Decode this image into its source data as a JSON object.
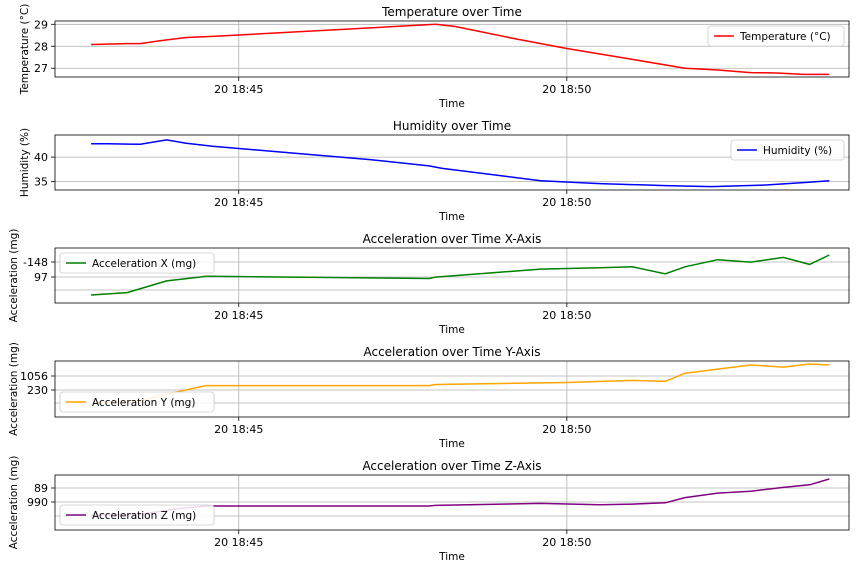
{
  "chart_data": [
    {
      "type": "line",
      "title": "Temperature over Time",
      "xlabel": "Time",
      "ylabel": "Temperature (°C)",
      "x_ticks": [
        {
          "t": 2.0,
          "label": "20 18:45"
        },
        {
          "t": 7.0,
          "label": "20 18:50"
        }
      ],
      "y_ticks": [
        {
          "v": 27,
          "label": "27"
        },
        {
          "v": 28,
          "label": "28"
        },
        {
          "v": 29,
          "label": "29"
        }
      ],
      "xlim": [
        -0.8,
        11.3
      ],
      "ylim": [
        26.6,
        29.15
      ],
      "grid": true,
      "legend_position": "top-right",
      "series": [
        {
          "name": "Temperature (°C)",
          "color": "#ff0000",
          "x": [
            -0.25,
            0.0,
            0.3,
            0.5,
            0.8,
            1.2,
            1.6,
            5.0,
            5.3,
            6.2,
            7.0,
            8.0,
            8.8,
            9.3,
            9.8,
            10.2,
            10.6,
            11.0
          ],
          "y": [
            28.08,
            28.1,
            28.12,
            28.12,
            28.25,
            28.4,
            28.45,
            29.0,
            28.9,
            28.35,
            27.9,
            27.4,
            27.0,
            26.92,
            26.8,
            26.78,
            26.72,
            26.72
          ]
        }
      ]
    },
    {
      "type": "line",
      "title": "Humidity over Time",
      "xlabel": "Time",
      "ylabel": "Humidity (%)",
      "x_ticks": [
        {
          "t": 2.0,
          "label": "20 18:45"
        },
        {
          "t": 7.0,
          "label": "20 18:50"
        }
      ],
      "y_ticks": [
        {
          "v": 35,
          "label": "35"
        },
        {
          "v": 40,
          "label": "40"
        }
      ],
      "xlim": [
        -0.8,
        11.3
      ],
      "ylim": [
        33.3,
        44.5
      ],
      "grid": true,
      "legend_position": "top-right",
      "series": [
        {
          "name": "Humidity (%)",
          "color": "#0000ff",
          "x": [
            -0.25,
            0.0,
            0.5,
            0.9,
            1.2,
            1.6,
            2.5,
            4.0,
            4.9,
            5.1,
            6.0,
            6.6,
            7.5,
            8.5,
            9.2,
            10.0,
            10.6,
            11.0
          ],
          "y": [
            42.7,
            42.7,
            42.6,
            43.5,
            42.8,
            42.2,
            41.2,
            39.5,
            38.2,
            37.7,
            36.2,
            35.2,
            34.6,
            34.2,
            34.0,
            34.3,
            34.8,
            35.2
          ]
        }
      ]
    },
    {
      "type": "line",
      "title": "Acceleration over Time X-Axis",
      "xlabel": "Time",
      "ylabel": "Acceleration (mg)",
      "x_ticks": [
        {
          "t": 2.0,
          "label": "20 18:45"
        },
        {
          "t": 7.0,
          "label": "20 18:50"
        }
      ],
      "y_ticks": [
        {
          "v": 97,
          "label": "97"
        },
        {
          "v": -148,
          "label": "-148"
        }
      ],
      "grid": true,
      "legend_position": "top-left",
      "series": [
        {
          "name": "Acceleration X (mg)",
          "color": "#008000",
          "x": [
            -0.25,
            0.3,
            0.9,
            1.4,
            1.5,
            4.9,
            5.0,
            6.6,
            7.5,
            8.0,
            8.5,
            8.8,
            9.3,
            9.8,
            10.3,
            10.7,
            11.0
          ],
          "y": [
            80,
            85,
            110,
            118,
            120,
            115,
            118,
            135,
            138,
            140,
            125,
            140,
            155,
            150,
            160,
            145,
            165
          ]
        }
      ]
    },
    {
      "type": "line",
      "title": "Acceleration over Time Y-Axis",
      "xlabel": "Time",
      "ylabel": "Acceleration (mg)",
      "x_ticks": [
        {
          "t": 2.0,
          "label": "20 18:45"
        },
        {
          "t": 7.0,
          "label": "20 18:50"
        }
      ],
      "y_ticks": [
        {
          "v": 230,
          "label": "230"
        },
        {
          "v": 1056,
          "label": "1056"
        }
      ],
      "grid": true,
      "legend_position": "bottom-left",
      "series": [
        {
          "name": "Acceleration Y (mg)",
          "color": "#ffa500",
          "x": [
            -0.25,
            0.5,
            1.0,
            1.5,
            4.9,
            5.0,
            7.0,
            8.0,
            8.5,
            8.8,
            9.3,
            9.8,
            10.3,
            10.7,
            11.0
          ],
          "y": [
            230,
            250,
            330,
            400,
            400,
            410,
            430,
            450,
            440,
            520,
            560,
            600,
            580,
            610,
            600
          ]
        }
      ]
    },
    {
      "type": "line",
      "title": "Acceleration over Time Z-Axis",
      "xlabel": "Time",
      "ylabel": "Acceleration (mg)",
      "x_ticks": [
        {
          "t": 2.0,
          "label": "20 18:45"
        },
        {
          "t": 7.0,
          "label": "20 18:50"
        }
      ],
      "y_ticks": [
        {
          "v": 990,
          "label": "990"
        },
        {
          "v": 89,
          "label": "89"
        }
      ],
      "grid": true,
      "legend_position": "bottom-left",
      "series": [
        {
          "name": "Acceleration Z (mg)",
          "color": "#800080",
          "x": [
            -0.25,
            0.5,
            1.0,
            1.5,
            4.9,
            5.0,
            6.6,
            7.5,
            8.0,
            8.5,
            8.8,
            9.3,
            9.8,
            10.3,
            10.7,
            11.0
          ],
          "y": [
            990,
            980,
            900,
            850,
            850,
            840,
            810,
            830,
            820,
            800,
            720,
            650,
            620,
            560,
            520,
            430
          ]
        }
      ]
    }
  ]
}
